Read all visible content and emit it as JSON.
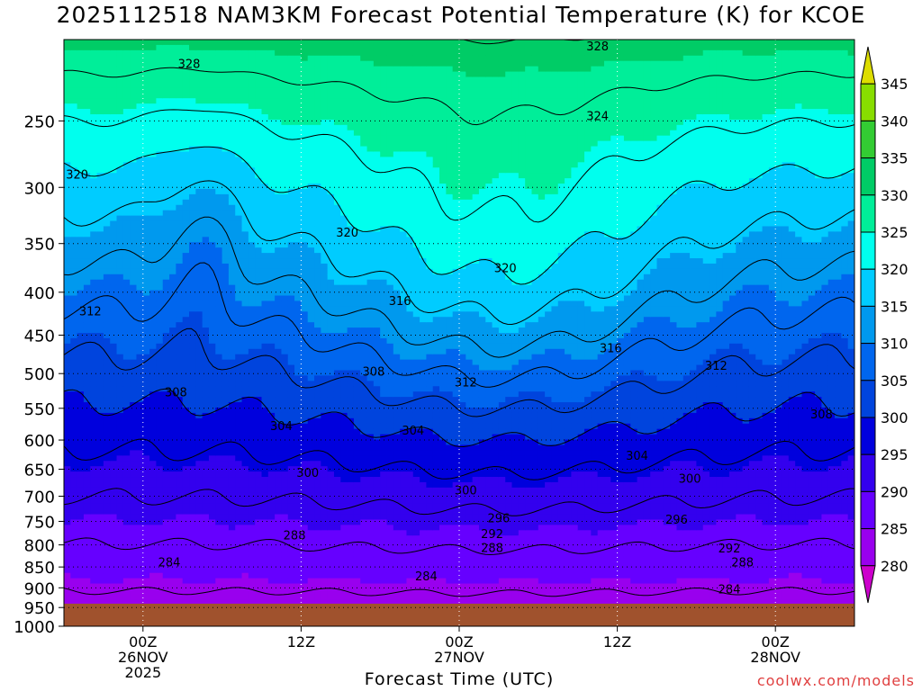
{
  "title": "2025112518 NAM3KM Forecast Potential Temperature (K) for KCOE",
  "credit": "coolwx.com/models",
  "chart_data": {
    "type": "heatmap",
    "title": "2025112518 NAM3KM Forecast Potential Temperature (K) for KCOE",
    "xlabel": "Forecast Time (UTC)",
    "ylabel": "",
    "x_range_hours_utc": [
      "2025-11-25T18Z",
      "2025-11-28T06Z"
    ],
    "y_scale": "log-pressure, inverted",
    "y_ticks": [
      250,
      300,
      350,
      400,
      450,
      500,
      550,
      600,
      650,
      700,
      750,
      800,
      850,
      900,
      950,
      1000
    ],
    "y_range_hPa": [
      1000,
      200
    ],
    "x_ticks": [
      {
        "label": "00Z",
        "sub1": "26NOV",
        "sub2": "2025"
      },
      {
        "label": "12Z",
        "sub1": "",
        "sub2": ""
      },
      {
        "label": "00Z",
        "sub1": "27NOV",
        "sub2": ""
      },
      {
        "label": "12Z",
        "sub1": "",
        "sub2": ""
      },
      {
        "label": "00Z",
        "sub1": "28NOV",
        "sub2": ""
      }
    ],
    "x_tick_hours": [
      6,
      18,
      30,
      42,
      54
    ],
    "x_total_hours": 60,
    "grid": true,
    "colorbar": {
      "levels": [
        280,
        285,
        290,
        295,
        300,
        305,
        310,
        315,
        320,
        325,
        330,
        335,
        340,
        345
      ],
      "colors": [
        "#cc00cc",
        "#9900ee",
        "#6600ff",
        "#3300ee",
        "#0000dd",
        "#0044dd",
        "#0066ee",
        "#0099ee",
        "#00ccff",
        "#00ffee",
        "#00ee99",
        "#00cc66",
        "#33cc33",
        "#88dd00",
        "#dddd00"
      ]
    },
    "contour_labels": [
      {
        "value": "328",
        "hour": 9.5,
        "p": 214
      },
      {
        "value": "328",
        "hour": 40.5,
        "p": 204
      },
      {
        "value": "324",
        "hour": 40.5,
        "p": 247
      },
      {
        "value": "320",
        "hour": 1,
        "p": 290
      },
      {
        "value": "320",
        "hour": 21.5,
        "p": 340
      },
      {
        "value": "320",
        "hour": 33.5,
        "p": 375
      },
      {
        "value": "316",
        "hour": 25.5,
        "p": 410
      },
      {
        "value": "316",
        "hour": 41.5,
        "p": 467
      },
      {
        "value": "312",
        "hour": 2,
        "p": 422
      },
      {
        "value": "312",
        "hour": 30.5,
        "p": 513
      },
      {
        "value": "312",
        "hour": 49.5,
        "p": 490
      },
      {
        "value": "308",
        "hour": 8.5,
        "p": 527
      },
      {
        "value": "308",
        "hour": 23.5,
        "p": 498
      },
      {
        "value": "308",
        "hour": 57.5,
        "p": 560
      },
      {
        "value": "304",
        "hour": 16.5,
        "p": 578
      },
      {
        "value": "304",
        "hour": 26.5,
        "p": 585
      },
      {
        "value": "304",
        "hour": 43.5,
        "p": 627
      },
      {
        "value": "300",
        "hour": 18.5,
        "p": 657
      },
      {
        "value": "300",
        "hour": 30.5,
        "p": 690
      },
      {
        "value": "300",
        "hour": 47.5,
        "p": 668
      },
      {
        "value": "296",
        "hour": 33,
        "p": 745
      },
      {
        "value": "296",
        "hour": 46.5,
        "p": 747
      },
      {
        "value": "292",
        "hour": 32.5,
        "p": 777
      },
      {
        "value": "292",
        "hour": 50.5,
        "p": 809
      },
      {
        "value": "288",
        "hour": 17.5,
        "p": 780
      },
      {
        "value": "288",
        "hour": 32.5,
        "p": 808
      },
      {
        "value": "288",
        "hour": 51.5,
        "p": 840
      },
      {
        "value": "284",
        "hour": 8,
        "p": 840
      },
      {
        "value": "284",
        "hour": 27.5,
        "p": 873
      },
      {
        "value": "284",
        "hour": 50.5,
        "p": 905
      }
    ],
    "ground_level_p": 940,
    "ground_color": "#a0522d"
  }
}
